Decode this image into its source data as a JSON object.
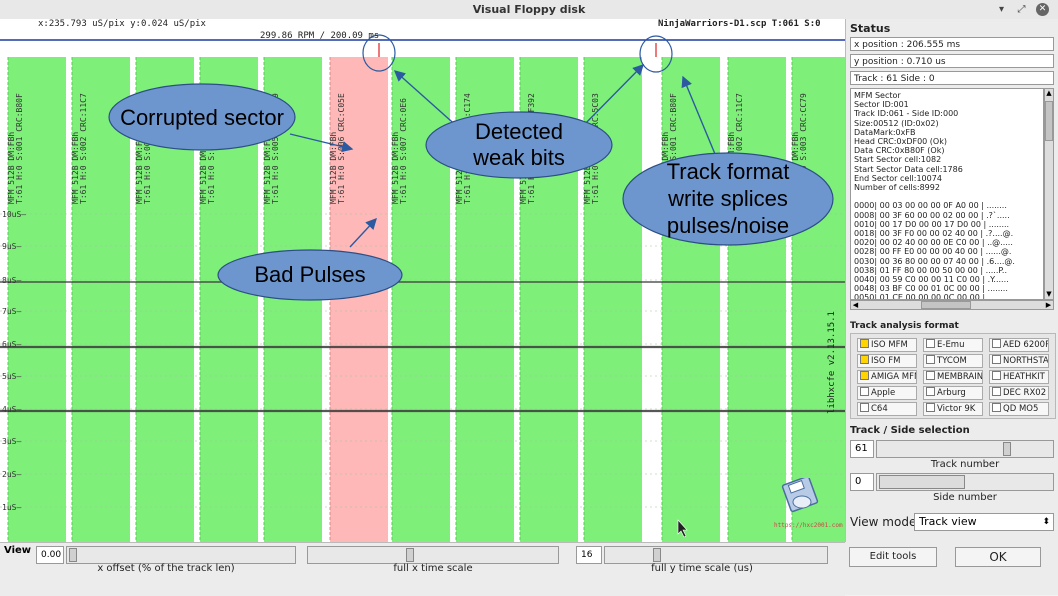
{
  "window": {
    "title": "Visual Floppy disk"
  },
  "viewer": {
    "cursor_readout": "x:235.793 uS/pix y:0.024 uS/pix",
    "file_info": "NinjaWarriors-D1.scp T:061 S:0",
    "rpm_info": "299.86 RPM / 200.09 ms",
    "y_ticks": [
      "10uS",
      "9uS",
      "8uS",
      "7uS",
      "6uS",
      "5uS",
      "4uS",
      "3uS",
      "2uS",
      "1uS"
    ],
    "sector_labels": [
      "MFM 512B DM:FBh T:61 H:0 S:001 CRC:B80F",
      "MFM 512B DM:FBh T:61 H:0 S:002 CRC:11C7",
      "MFM 512B DM:FBh T:61 H:0 S:003 CRC:CC79",
      "MFM 512B DM:FBh T:61 H:0 S:004 CRC:139B",
      "MFM 512B DM:FBh T:61 H:0 S:005 CRC:6889",
      "MFM 512B DM:FBh T:61 H:0 S:006 CRC:C05E",
      "MFM 512B DM:FBh T:61 H:0 S:007 CRC:0E6",
      "MFM 512B DM:FBh T:61 H:0 S:008 CRC:C174",
      "MFM 512B DM:FBh T:61 H:0 S:009 CRC:F392",
      "MFM 512B DM:FBh T:61 H:0 S:010 CRC:5C03",
      "MFM 512B DM:FBh T:61 H:0 S:001 CRC:B80F",
      "MFM 512B DM:FBh T:61 H:0 S:002 CRC:11C7",
      "MFM 512B DM:FBh T:61 H:0 S:003 CRC:CC79"
    ],
    "version": "libhxcfe v2.13.15.1",
    "logo_caption": "https://hxc2001.com",
    "callouts": {
      "corrupted": "Corrupted sector",
      "weak_1": "Detected",
      "weak_2": "weak bits",
      "splice_1": "Track format",
      "splice_2": "write splices",
      "splice_3": "pulses/noise",
      "bad_pulses": "Bad Pulses"
    }
  },
  "status": {
    "heading": "Status",
    "x_position": "x position : 206.555 ms",
    "y_position": "y position : 0.710 us",
    "track_side": "Track : 61 Side : 0",
    "details": [
      "MFM Sector",
      "Sector ID:001",
      "Track ID:061 - Side ID:000",
      "Size:00512 (ID:0x02)",
      "DataMark:0xFB",
      "Head CRC:0xDF00 (Ok)",
      "Data CRC:0xB80F (Ok)",
      "Start Sector cell:1082",
      "Start Sector Data cell:1786",
      "End Sector cell:10074",
      "Number of cells:8992",
      "",
      "0000| 00 03 00 00 00 0F A0 00 | ........",
      "0008| 00 3F 60 00 00 02 00 00 | .?`.....",
      "0010| 00 17 D0 00 00 17 D0 00 | ........",
      "0018| 00 3F F0 00 00 02 40 00 | .?....@.",
      "0020| 00 02 40 00 00 0E C0 00 | ..@.....",
      "0028| 00 FF E0 00 00 00 40 00 | ......@.",
      "0030| 00 36 80 00 00 07 40 00 | .6....@.",
      "0038| 01 FF 80 00 00 50 00 00 | .....P..",
      "0040| 00 59 C0 00 00 11 C0 00 | .Y......",
      "0048| 03 BF C0 00 01 0C 00 00 | ........",
      "0050| 01 CE 00 00 00 0C 00 00 | ........"
    ]
  },
  "track_analysis": {
    "heading": "Track analysis format",
    "formats": [
      {
        "label": "ISO MFM",
        "checked": true
      },
      {
        "label": "E-Emu",
        "checked": false
      },
      {
        "label": "AED 6200P",
        "checked": false
      },
      {
        "label": "ISO FM",
        "checked": true
      },
      {
        "label": "TYCOM",
        "checked": false
      },
      {
        "label": "NORTHSTAR",
        "checked": false
      },
      {
        "label": "AMIGA MFM",
        "checked": true
      },
      {
        "label": "MEMBRAIN",
        "checked": false
      },
      {
        "label": "HEATHKIT",
        "checked": false
      },
      {
        "label": "Apple",
        "checked": false
      },
      {
        "label": "Arburg",
        "checked": false
      },
      {
        "label": "DEC RX02",
        "checked": false
      },
      {
        "label": "C64",
        "checked": false
      },
      {
        "label": "Victor 9K",
        "checked": false
      },
      {
        "label": "QD MO5",
        "checked": false
      }
    ]
  },
  "track_side": {
    "heading": "Track / Side selection",
    "track_value": "61",
    "track_label": "Track number",
    "side_value": "0",
    "side_label": "Side number",
    "view_mode_label": "View mode",
    "view_mode_value": "Track view"
  },
  "view": {
    "label": "View",
    "x_offset_value": "0.00",
    "x_offset_label": "x offset (% of the track len)",
    "x_scale_label": "full x time scale",
    "y_scale_value": "16",
    "y_scale_label": "full y time scale (us)"
  },
  "buttons": {
    "edit_tools": "Edit tools",
    "ok": "OK"
  },
  "colors": {
    "sector_ok": "#7ef07a",
    "sector_bad": "#ffb8b8",
    "callout_fill": "#6d96cf"
  }
}
